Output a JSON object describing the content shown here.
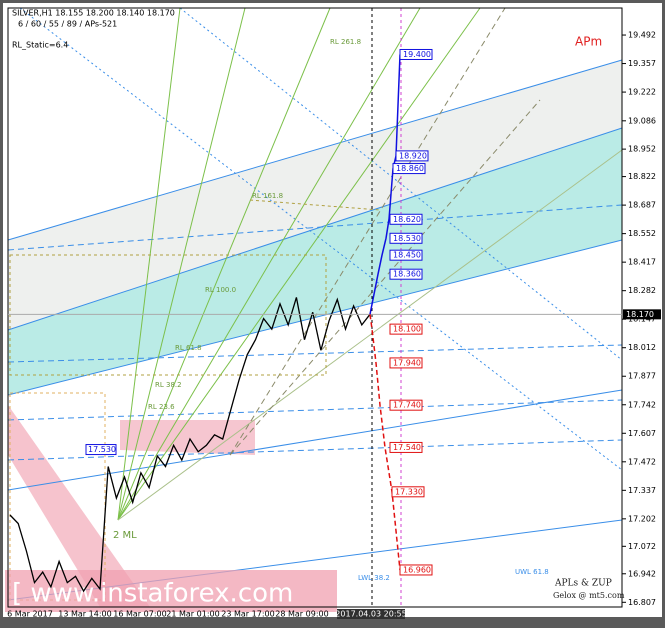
{
  "header": {
    "symbol_line": "SILVER,H1  18.155 18.200 18.140 18.170",
    "settings_line": "6 / 60 / 55 / 89 / APs-521",
    "static_line": "RL_Static=6.4",
    "watermark": "[ www.instaforex.com"
  },
  "chart_data": {
    "type": "line",
    "ylim": [
      16.78,
      19.62
    ],
    "yticks": [
      16.807,
      16.942,
      17.072,
      17.202,
      17.337,
      17.472,
      17.607,
      17.742,
      17.877,
      18.012,
      18.147,
      18.282,
      18.417,
      18.552,
      18.687,
      18.822,
      18.952,
      19.086,
      19.222,
      19.357,
      19.492
    ],
    "time_labels": [
      "6 Mar 2017",
      "13 Mar 14:00",
      "16 Mar 07:00",
      "21 Mar 01:00",
      "23 Mar 17:00",
      "28 Mar 09:00",
      "2017.04.03 20:55"
    ],
    "price": {
      "color": "#000000",
      "values": [
        17.22,
        17.18,
        17.05,
        16.9,
        16.95,
        16.88,
        17.0,
        16.9,
        16.93,
        16.86,
        16.92,
        16.87,
        17.45,
        17.3,
        17.4,
        17.28,
        17.42,
        17.35,
        17.5,
        17.45,
        17.55,
        17.48,
        17.58,
        17.52,
        17.55,
        17.6,
        17.58,
        17.72,
        17.86,
        17.98,
        18.05,
        18.15,
        18.1,
        18.22,
        18.12,
        18.25,
        18.05,
        18.18,
        18.0,
        18.14,
        18.24,
        18.1,
        18.21,
        18.12,
        18.17
      ]
    },
    "last_price": {
      "value": 18.17,
      "label": "18.170"
    },
    "levels_up": {
      "color": "#1010e0",
      "values": [
        {
          "value": 18.36,
          "label": "18.360"
        },
        {
          "value": 18.45,
          "label": "18.450"
        },
        {
          "value": 18.53,
          "label": "18.530"
        },
        {
          "value": 18.62,
          "label": "18.620"
        },
        {
          "value": 18.86,
          "label": "18.860"
        },
        {
          "value": 18.92,
          "label": "18.920"
        },
        {
          "value": 19.4,
          "label": "19.400"
        }
      ]
    },
    "levels_down": {
      "color": "#e01010",
      "values": [
        {
          "value": 18.1,
          "label": "18.100"
        },
        {
          "value": 17.94,
          "label": "17.940"
        },
        {
          "value": 17.74,
          "label": "17.740"
        },
        {
          "value": 17.54,
          "label": "17.540"
        },
        {
          "value": 17.33,
          "label": "17.330"
        },
        {
          "value": 16.96,
          "label": "16.960"
        }
      ]
    },
    "level_left": {
      "value": 17.53,
      "label": "17.530"
    },
    "annotations": [
      "RL 261.8",
      "RL 161.8",
      "RL 100.0",
      "RL 61.8",
      "RL 38.2",
      "RL 23.6",
      "2 ML",
      "LWL 38.2",
      "UWL 61.8",
      "APm",
      "APLs & ZUP",
      "Gelox @ mt5.com"
    ]
  }
}
